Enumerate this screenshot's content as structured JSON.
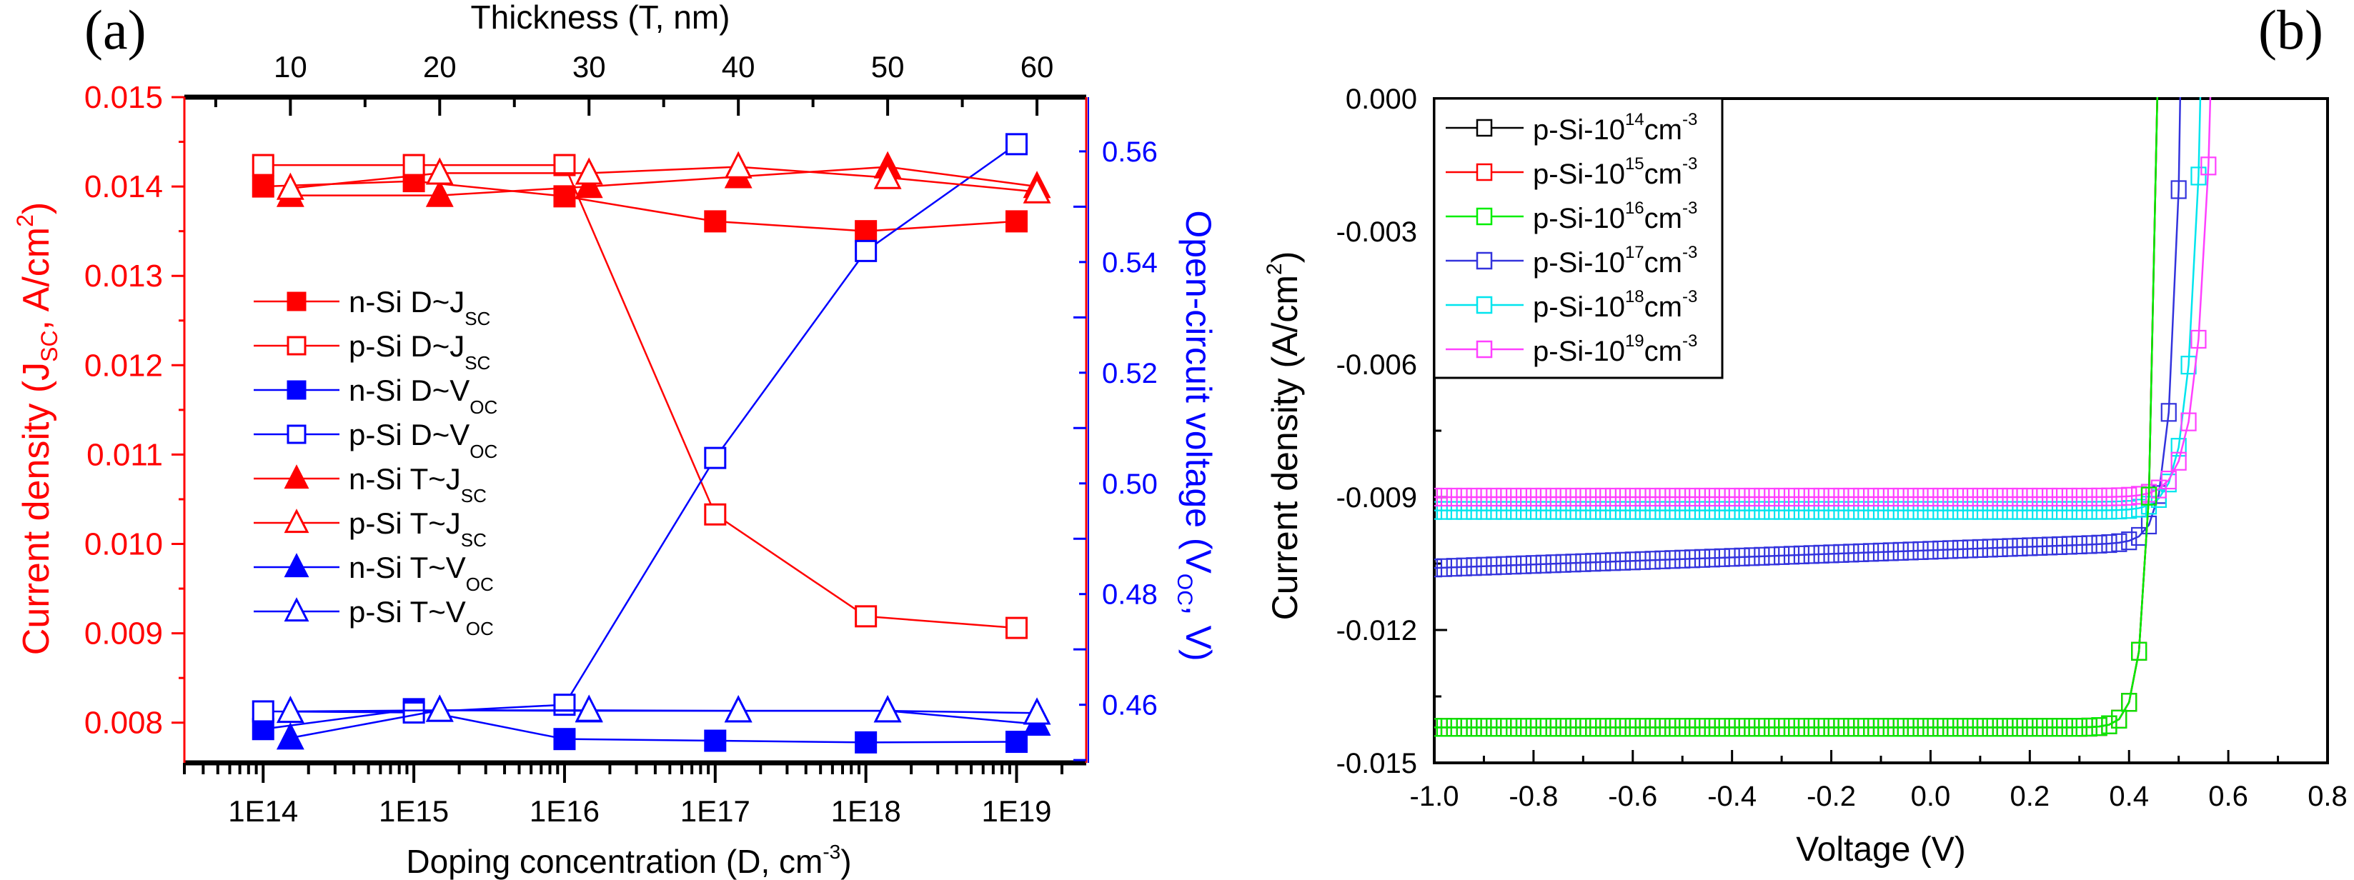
{
  "panel_labels": {
    "a": "(a)",
    "b": "(b)"
  },
  "colors": {
    "red": "#ff0000",
    "blue": "#0000ff",
    "black": "#000000",
    "green": "#00ee00",
    "cyan": "#00ffff",
    "magenta": "#ff40ff",
    "navy": "#3333dd"
  },
  "chart_data": [
    {
      "type": "line",
      "title": "",
      "xlabel": {
        "main": "Doping concentration (D, cm",
        "sup": "-3",
        "end": ")"
      },
      "x2label": "Thickness (T, nm)",
      "ylabel": {
        "pre": "Current density (J",
        "sub": "SC",
        "mid": ", A/cm",
        "sup": "2",
        "end": ")"
      },
      "y2label": {
        "pre": "Open-circuit voltage (V",
        "sub": "OC",
        "end": ", V)"
      },
      "x_scale": "log",
      "xlim": [
        30000000000000.0,
        2.9e+19
      ],
      "x2lim": [
        2.9,
        63.3
      ],
      "ylim": [
        0.00755,
        0.015
      ],
      "y2lim": [
        0.4495,
        0.5698
      ],
      "x_ticks": [
        "1E14",
        "1E15",
        "1E16",
        "1E17",
        "1E18",
        "1E19"
      ],
      "x_tick_values": [
        100000000000000.0,
        1000000000000000.0,
        1e+16,
        1e+17,
        1e+18,
        1e+19
      ],
      "x2_ticks": [
        10,
        20,
        30,
        40,
        50,
        60
      ],
      "y_ticks": [
        "0.008",
        "0.009",
        "0.010",
        "0.011",
        "0.012",
        "0.013",
        "0.014",
        "0.015"
      ],
      "y2_ticks": [
        "0.46",
        "0.48",
        "0.50",
        "0.52",
        "0.54",
        "0.56"
      ],
      "legend_position": "center-left",
      "series": [
        {
          "name": "n-Si D~J",
          "sub": "SC",
          "axis": "D",
          "yaxis": "left",
          "marker": "square",
          "filled": true,
          "color": "#ff0000",
          "x": [
            100000000000000.0,
            1000000000000000.0,
            1e+16,
            1e+17,
            1e+18,
            1e+19
          ],
          "y": [
            0.014,
            0.01406,
            0.01389,
            0.01361,
            0.0135,
            0.01361
          ]
        },
        {
          "name": "p-Si D~J",
          "sub": "SC",
          "axis": "D",
          "yaxis": "left",
          "marker": "square",
          "filled": false,
          "color": "#ff0000",
          "x": [
            100000000000000.0,
            1000000000000000.0,
            1e+16,
            1e+17,
            1e+18,
            1e+19
          ],
          "y": [
            0.01424,
            0.01424,
            0.01424,
            0.01033,
            0.00919,
            0.00906
          ]
        },
        {
          "name": "n-Si D~V",
          "sub": "OC",
          "axis": "D",
          "yaxis": "right",
          "marker": "square",
          "filled": true,
          "color": "#0000ff",
          "x": [
            100000000000000.0,
            1000000000000000.0,
            1e+16,
            1e+17,
            1e+18,
            1e+19
          ],
          "y": [
            0.4556,
            0.4592,
            0.4538,
            0.4535,
            0.4532,
            0.4533
          ]
        },
        {
          "name": "p-Si D~V",
          "sub": "OC",
          "axis": "D",
          "yaxis": "right",
          "marker": "square",
          "filled": false,
          "color": "#0000ff",
          "x": [
            100000000000000.0,
            1000000000000000.0,
            1e+16,
            1e+17,
            1e+18,
            1e+19
          ],
          "y": [
            0.4588,
            0.4586,
            0.46,
            0.5046,
            0.542,
            0.5613
          ]
        },
        {
          "name": "n-Si T~J",
          "sub": "SC",
          "axis": "T",
          "yaxis": "left",
          "marker": "triangle",
          "filled": true,
          "color": "#ff0000",
          "x": [
            10,
            20,
            30,
            40,
            50,
            60
          ],
          "y": [
            0.0139,
            0.0139,
            0.014,
            0.01411,
            0.01422,
            0.014
          ]
        },
        {
          "name": "p-Si T~J",
          "sub": "SC",
          "axis": "T",
          "yaxis": "left",
          "marker": "triangle",
          "filled": false,
          "color": "#ff0000",
          "x": [
            10,
            20,
            30,
            40,
            50,
            60
          ],
          "y": [
            0.01398,
            0.01415,
            0.01415,
            0.01422,
            0.0141,
            0.01394
          ]
        },
        {
          "name": "n-Si T~V",
          "sub": "OC",
          "axis": "T",
          "yaxis": "right",
          "marker": "triangle",
          "filled": true,
          "color": "#0000ff",
          "x": [
            10,
            20,
            30,
            40,
            50,
            60
          ],
          "y": [
            0.454,
            0.459,
            0.4589,
            0.4589,
            0.4589,
            0.4565
          ]
        },
        {
          "name": "p-Si T~V",
          "sub": "OC",
          "axis": "T",
          "yaxis": "right",
          "marker": "triangle",
          "filled": false,
          "color": "#0000ff",
          "x": [
            10,
            20,
            30,
            40,
            50,
            60
          ],
          "y": [
            0.4588,
            0.459,
            0.459,
            0.4589,
            0.4589,
            0.4585
          ]
        }
      ]
    },
    {
      "type": "line",
      "title": "",
      "xlabel": "Voltage (V)",
      "ylabel": {
        "pre": "Current density (A/cm",
        "sup": "2",
        "end": ")"
      },
      "xlim": [
        -1.0,
        0.8
      ],
      "ylim": [
        -0.015,
        0.0
      ],
      "x_ticks": [
        "-1.0",
        "-0.8",
        "-0.6",
        "-0.4",
        "-0.2",
        "0.0",
        "0.2",
        "0.4",
        "0.6",
        "0.8"
      ],
      "y_ticks": [
        "0.000",
        "-0.003",
        "-0.006",
        "-0.009",
        "-0.012",
        "-0.015"
      ],
      "legend_position": "top-left",
      "voltage_step": 0.02,
      "series": [
        {
          "name": "p-Si-10",
          "exp": "14",
          "unit": "cm",
          "unit_exp": "-3",
          "color": "#000000",
          "jsc_at_minus1V": -0.0142,
          "jsc_at_0V": -0.0142,
          "voc": 0.458,
          "ideality_vt": 0.018
        },
        {
          "name": "p-Si-10",
          "exp": "15",
          "unit": "cm",
          "unit_exp": "-3",
          "color": "#ff0000",
          "jsc_at_minus1V": -0.0142,
          "jsc_at_0V": -0.0142,
          "voc": 0.458,
          "ideality_vt": 0.018
        },
        {
          "name": "p-Si-10",
          "exp": "16",
          "unit": "cm",
          "unit_exp": "-3",
          "color": "#00ee00",
          "jsc_at_minus1V": -0.0142,
          "jsc_at_0V": -0.0142,
          "voc": 0.458,
          "ideality_vt": 0.018
        },
        {
          "name": "p-Si-10",
          "exp": "17",
          "unit": "cm",
          "unit_exp": "-3",
          "color": "#3333dd",
          "jsc_at_minus1V": -0.0106,
          "jsc_at_0V": -0.0102,
          "voc": 0.505,
          "ideality_vt": 0.02
        },
        {
          "name": "p-Si-10",
          "exp": "18",
          "unit": "cm",
          "unit_exp": "-3",
          "color": "#00e5ee",
          "jsc_at_minus1V": -0.0093,
          "jsc_at_0V": -0.0093,
          "voc": 0.545,
          "ideality_vt": 0.024
        },
        {
          "name": "p-Si-10",
          "exp": "19",
          "unit": "cm",
          "unit_exp": "-3",
          "color": "#ff40ff",
          "jsc_at_minus1V": -0.009,
          "jsc_at_0V": -0.009,
          "voc": 0.565,
          "ideality_vt": 0.027
        }
      ]
    }
  ]
}
